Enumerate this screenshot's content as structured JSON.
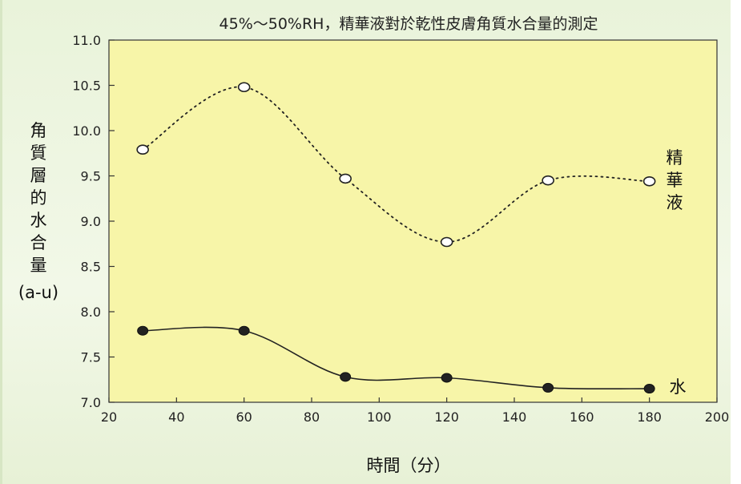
{
  "chart_data": {
    "type": "line",
    "title": "45%～50%RH，精華液對於乾性皮膚角質水合量的測定",
    "xlabel": "時間（分）",
    "ylabel": [
      "角",
      "質",
      "層",
      "的",
      "水",
      "合",
      "量",
      "(a-u)"
    ],
    "xlim": [
      20,
      200
    ],
    "ylim": [
      7.0,
      11.0
    ],
    "x_ticks": [
      "20",
      "40",
      "60",
      "80",
      "100",
      "120",
      "140",
      "160",
      "180",
      "200"
    ],
    "y_ticks": [
      "11.0",
      "10.5",
      "10.0",
      "9.5",
      "9.0",
      "8.5",
      "8.0",
      "7.5",
      "7.0"
    ],
    "grid": false,
    "background": "#f7f5a8",
    "series": [
      {
        "name": "精華液",
        "label_chars": [
          "精",
          "華",
          "液"
        ],
        "style": "dotted",
        "marker": "open-circle",
        "x": [
          30,
          60,
          90,
          120,
          150,
          180
        ],
        "y": [
          9.79,
          10.48,
          9.47,
          8.77,
          9.45,
          9.44
        ]
      },
      {
        "name": "水",
        "label_chars": [
          "水"
        ],
        "style": "solid",
        "marker": "filled-circle",
        "x": [
          30,
          60,
          90,
          120,
          150,
          180
        ],
        "y": [
          7.79,
          7.79,
          7.28,
          7.27,
          7.16,
          7.15
        ]
      }
    ]
  }
}
